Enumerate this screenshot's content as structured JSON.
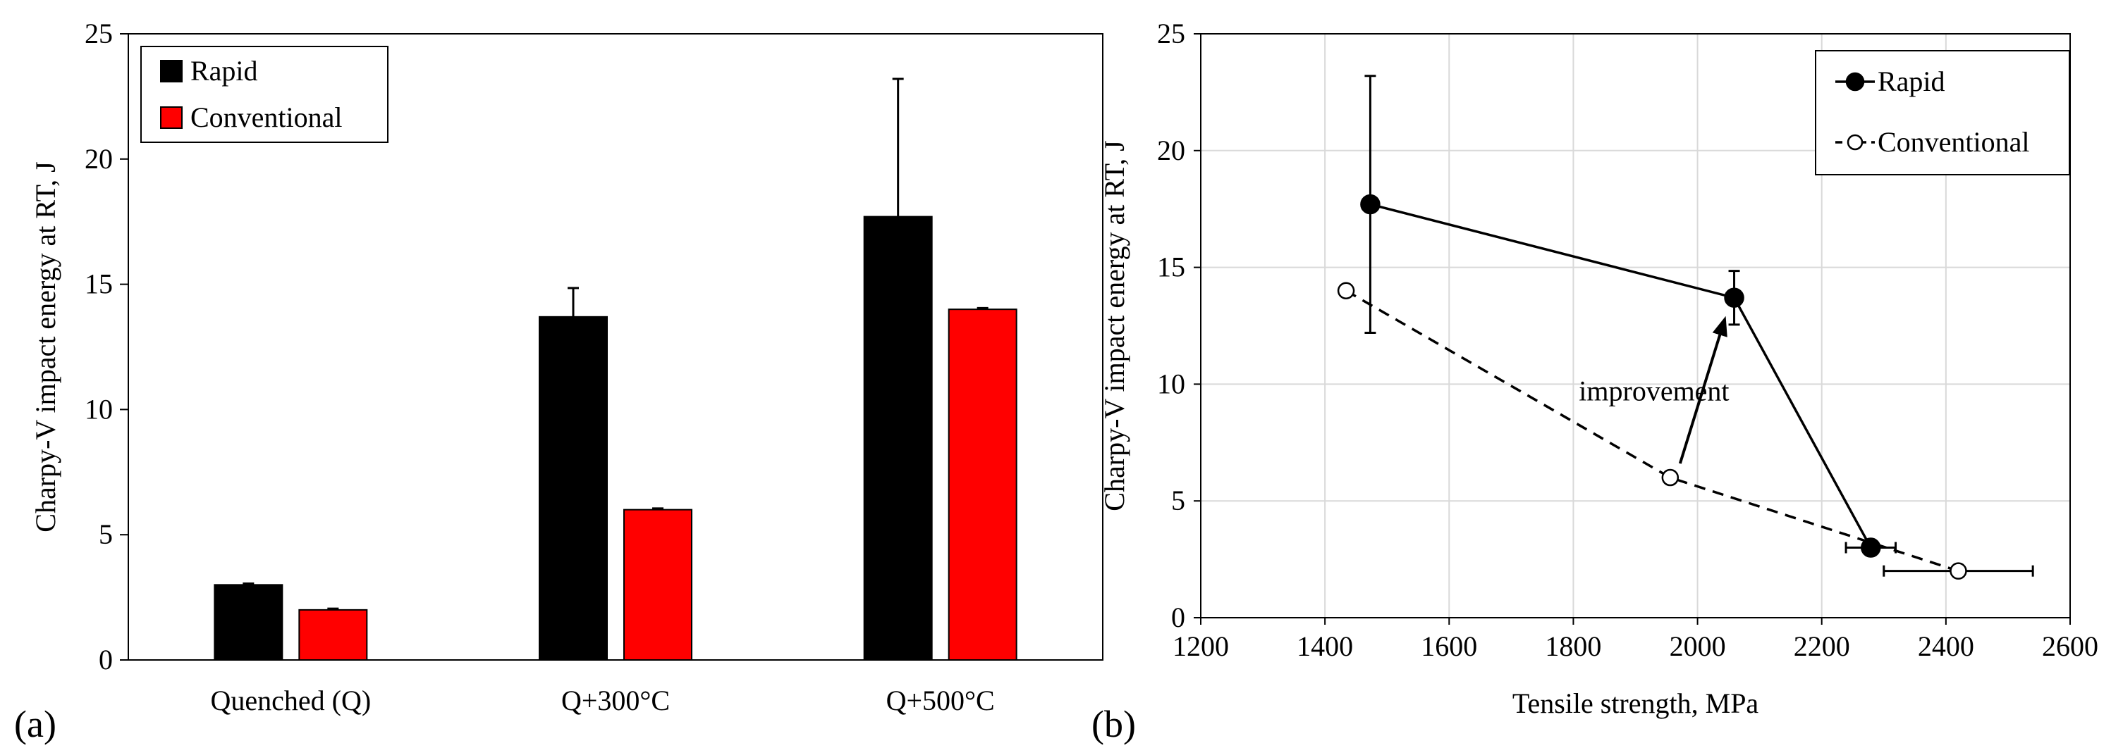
{
  "colors": {
    "rapid": "#000000",
    "conventional": "#ff0000",
    "axis": "#000000",
    "grid": "#d9d9d9"
  },
  "chart_data": [
    {
      "panel_label": "(a)",
      "type": "bar",
      "ylabel": "Charpy-V impact energy at RT, J",
      "xlabel": "",
      "categories": [
        "Quenched (Q)",
        "Q+300°C",
        "Q+500°C"
      ],
      "ylim": [
        0,
        25
      ],
      "yticks": [
        0,
        5,
        10,
        15,
        20,
        25
      ],
      "grid": false,
      "legend_position": "top-left",
      "series": [
        {
          "name": "Rapid",
          "color": "#000000",
          "values": [
            3.0,
            13.7,
            17.7
          ],
          "error": [
            0.05,
            1.15,
            5.5
          ]
        },
        {
          "name": "Conventional",
          "color": "#ff0000",
          "values": [
            2.0,
            6.0,
            14.0
          ],
          "error": [
            0.05,
            0.05,
            0.05
          ]
        }
      ]
    },
    {
      "panel_label": "(b)",
      "type": "line",
      "xlabel": "Tensile strength, MPa",
      "ylabel": "Charpy-V impact energy at RT, J",
      "xlim": [
        1200,
        2600
      ],
      "ylim": [
        0,
        25
      ],
      "xticks": [
        1200,
        1400,
        1600,
        1800,
        2000,
        2200,
        2400,
        2600
      ],
      "yticks": [
        0,
        5,
        10,
        15,
        20,
        25
      ],
      "grid": true,
      "legend_position": "top-right",
      "annotation": "improvement",
      "series": [
        {
          "name": "Rapid",
          "marker": "filled-circle",
          "line": "solid",
          "x": [
            1473,
            2059,
            2279
          ],
          "y": [
            17.7,
            13.7,
            3.0
          ],
          "yerr": [
            5.5,
            1.15,
            0.0
          ],
          "xerr": [
            0,
            10,
            40
          ]
        },
        {
          "name": "Conventional",
          "marker": "open-circle",
          "line": "dashed",
          "x": [
            1434,
            1956,
            2420
          ],
          "y": [
            14.0,
            6.0,
            2.0
          ],
          "yerr": [
            0,
            0,
            0
          ],
          "xerr": [
            0,
            0,
            120
          ]
        }
      ]
    }
  ]
}
